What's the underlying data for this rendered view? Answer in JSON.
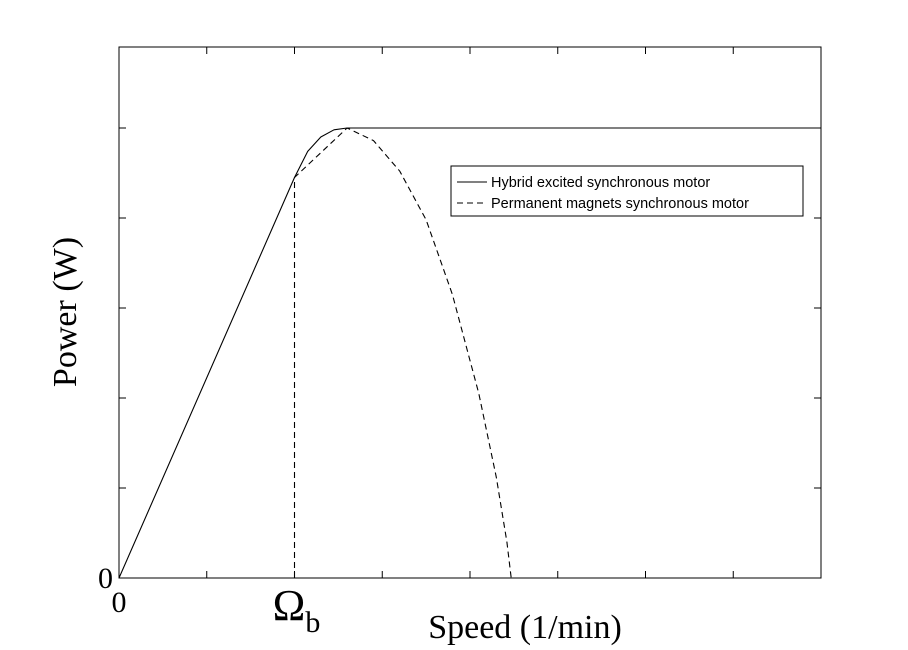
{
  "chart_data": {
    "type": "line",
    "xlabel": "Speed (1/min)",
    "ylabel": "Power (W)",
    "x_tick_labels": [
      {
        "x": 0,
        "label": "0"
      },
      {
        "x": 2,
        "label": "Ω",
        "subscript": "b"
      }
    ],
    "y_tick_labels": [
      {
        "y": 0,
        "label": "0"
      }
    ],
    "xlim": [
      0,
      8
    ],
    "ylim": [
      0,
      5.9
    ],
    "x_ticks": [
      0,
      1,
      2,
      3,
      4,
      5,
      6,
      7,
      8
    ],
    "y_ticks": [
      0,
      1,
      2,
      3,
      4,
      5
    ],
    "grid": false,
    "legend": "top-right",
    "series": [
      {
        "name": "Hybrid excited synchronous motor",
        "style": "solid",
        "color": "#000000",
        "x": [
          0,
          2.0,
          2.15,
          2.3,
          2.45,
          2.6,
          2.75,
          8.0
        ],
        "y": [
          0,
          4.45,
          4.74,
          4.9,
          4.98,
          5.0,
          5.0,
          5.0
        ]
      },
      {
        "name": "Permanent magnets synchronous motor",
        "style": "dashed",
        "color": "#000000",
        "x": [
          2.0,
          2.0,
          2.6,
          2.9,
          3.2,
          3.5,
          3.8,
          4.1,
          4.3,
          4.42,
          4.47
        ],
        "y": [
          0,
          4.45,
          5.0,
          4.86,
          4.52,
          3.98,
          3.15,
          2.05,
          1.12,
          0.4,
          0
        ]
      }
    ]
  }
}
